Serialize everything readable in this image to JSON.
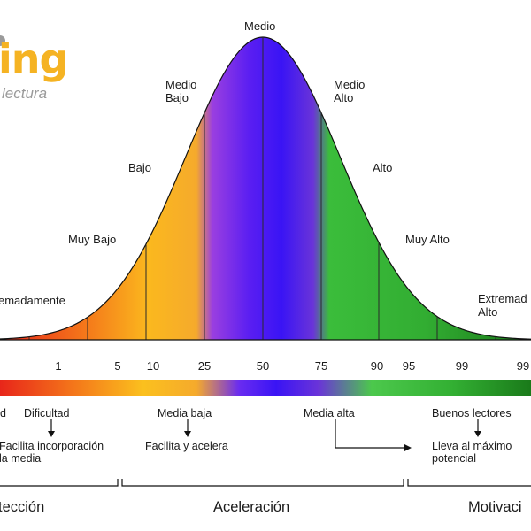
{
  "logo": {
    "word": "ing",
    "sub": "lectura",
    "colors": {
      "word": "#f5b323",
      "sub": "#9a9a9a"
    }
  },
  "curve_labels": {
    "extremadamente_bajo": "emadamente",
    "muy_bajo": "Muy Bajo",
    "bajo": "Bajo",
    "medio_bajo": "Medio\nBajo",
    "medio": "Medio",
    "medio_alto": "Medio\nAlto",
    "alto": "Alto",
    "muy_alto": "Muy Alto",
    "extremadamente_alto": "Extremad\nAlto"
  },
  "percentiles": [
    "1",
    "5",
    "10",
    "25",
    "50",
    "75",
    "90",
    "95",
    "99",
    "99"
  ],
  "annotations": {
    "d": "d",
    "dificultad": "Dificultad",
    "facilita_incorporacion": "Facilita incorporación\nla media",
    "media_baja": "Media baja",
    "facilita_acelera": "Facilita y acelera",
    "media_alta": "Media alta",
    "buenos_lectores": "Buenos lectores",
    "lleva_maximo": "Lleva al máximo\npotencial"
  },
  "sections": {
    "deteccion": "tección",
    "aceleracion": "Aceleración",
    "motivacion": "Motivaci"
  },
  "gradient_colors": [
    "#e8261a",
    "#f4771a",
    "#fbbd1e",
    "#f7b22b",
    "#7b2cf0",
    "#3a14f5",
    "#6a2ce8",
    "#3fc23f",
    "#2a9e2a",
    "#1a7d1a"
  ]
}
